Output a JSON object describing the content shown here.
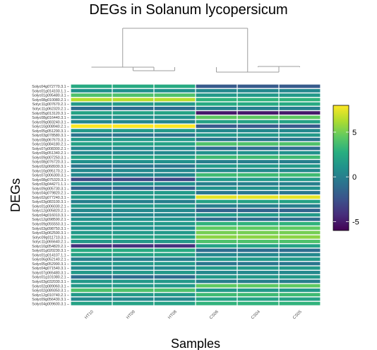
{
  "chart_data": {
    "type": "heatmap",
    "title": "DEGs in Solanum lycopersicum",
    "xlabel": "Samples",
    "ylabel": "DEGs",
    "columns": [
      "HT10",
      "HT09",
      "HT08",
      "CS06",
      "CS04",
      "CS05"
    ],
    "rows": [
      "Solyc04g072770.3.1",
      "Solyc01g014103.1.1",
      "Solyc01g095480.3.1",
      "Solyc08g010080.2.1",
      "Solyc11g007670.2.1",
      "Solyc11g062320.2.1",
      "Solyc05g013120.3.1",
      "Solyc08g016440.3.1",
      "Solyc09g083240.3.1",
      "Solyc10g008940.2.1",
      "Solyc05g051290.3.1",
      "Solyc03g078580.3.1",
      "Solyc08g067670.3.1",
      "Solyc10g084180.2.1",
      "Solyc07g008300.2.1",
      "Solyc09g051340.2.1",
      "Solyc09g007250.3.1",
      "Solyc08g076720.3.1",
      "Solyc02g068930.3.1",
      "Solyc10g095170.2.1",
      "Solyc07g006300.3.1",
      "Solyc08g075320.3.1",
      "Solyc03g044271.1.1",
      "Solyc09g005730.3.1",
      "Solyc04g079820.2.1",
      "Solyc02g077240.3.1",
      "Solyc03g083100.3.1",
      "Solyc01g006030.2.1",
      "Solyc12g005820.2.1",
      "Solyc04g016010.3.1",
      "Solyc12g098590.2.1",
      "Solyc09g055550.3.1",
      "Solyc03g098750.3.1",
      "Solyc03g062590.3.1",
      "Solyc09g011710.3.1",
      "Solyc11g065640.2.1",
      "Solyc10g054820.2.1",
      "Solyc01g020230.3.1",
      "Solyc01g014107.1.1",
      "Solyc06g052140.2.1",
      "Solyc05g052990.3.1",
      "Solyc04g071540.3.1",
      "Solyc07g065480.3.1",
      "Solyc01g101080.2.1",
      "Solyc03g032030.3.1",
      "Solyc02g089060.3.1",
      "Solyc02g089350.3.1",
      "Solyc12g010740.2.1",
      "Solyc09g056430.3.1",
      "Solyc04g009600.3.1"
    ],
    "values": [
      [
        2.5,
        2.5,
        2.5,
        -2.0,
        -2.0,
        -2.0
      ],
      [
        1.0,
        1.0,
        1.0,
        0.5,
        0.5,
        0.5
      ],
      [
        4.0,
        4.0,
        4.0,
        1.5,
        1.5,
        1.5
      ],
      [
        6.5,
        6.5,
        6.5,
        3.0,
        3.0,
        3.0
      ],
      [
        1.5,
        1.5,
        1.5,
        2.5,
        2.5,
        2.5
      ],
      [
        -1.0,
        -1.0,
        -1.0,
        0.0,
        0.0,
        0.0
      ],
      [
        2.0,
        2.0,
        2.0,
        -5.0,
        -5.0,
        -5.0
      ],
      [
        1.0,
        1.0,
        1.0,
        4.5,
        4.5,
        4.5
      ],
      [
        0.5,
        0.5,
        0.5,
        2.0,
        2.0,
        2.0
      ],
      [
        8.0,
        8.0,
        8.0,
        -2.0,
        -2.0,
        -2.0
      ],
      [
        1.5,
        1.5,
        1.5,
        0.5,
        0.5,
        0.5
      ],
      [
        -0.5,
        -0.5,
        -0.5,
        1.5,
        1.5,
        1.5
      ],
      [
        1.5,
        1.5,
        1.5,
        -0.5,
        -0.5,
        -0.5
      ],
      [
        2.0,
        2.0,
        2.0,
        4.0,
        4.0,
        4.0
      ],
      [
        0.5,
        0.5,
        0.5,
        -1.0,
        -1.0,
        -1.0
      ],
      [
        0.5,
        0.5,
        0.5,
        1.0,
        1.0,
        1.0
      ],
      [
        2.0,
        2.0,
        2.0,
        3.5,
        3.5,
        3.5
      ],
      [
        1.0,
        1.0,
        1.0,
        0.0,
        0.0,
        0.0
      ],
      [
        -0.5,
        -0.5,
        -0.5,
        1.5,
        1.5,
        1.5
      ],
      [
        0.5,
        0.5,
        0.5,
        0.5,
        0.5,
        0.5
      ],
      [
        0.5,
        0.5,
        0.5,
        3.5,
        3.5,
        3.5
      ],
      [
        -3.0,
        -3.0,
        -3.0,
        1.5,
        1.5,
        1.5
      ],
      [
        1.0,
        1.0,
        1.0,
        0.0,
        0.0,
        0.0
      ],
      [
        -1.5,
        -1.5,
        -1.5,
        1.0,
        1.0,
        1.0
      ],
      [
        1.5,
        1.5,
        1.5,
        -0.5,
        -0.5,
        -0.5
      ],
      [
        1.5,
        1.5,
        1.5,
        7.5,
        7.5,
        7.5
      ],
      [
        0.0,
        0.0,
        0.0,
        2.0,
        2.0,
        2.0
      ],
      [
        1.5,
        1.5,
        1.5,
        0.0,
        0.0,
        0.0
      ],
      [
        0.5,
        0.5,
        0.5,
        -1.5,
        -1.5,
        -1.5
      ],
      [
        0.5,
        0.5,
        0.5,
        1.5,
        1.5,
        1.5
      ],
      [
        1.0,
        1.0,
        1.0,
        -1.0,
        -1.0,
        -1.0
      ],
      [
        1.5,
        1.5,
        1.5,
        3.0,
        3.0,
        3.0
      ],
      [
        1.0,
        1.0,
        1.0,
        4.5,
        4.5,
        4.5
      ],
      [
        1.5,
        1.5,
        1.5,
        5.0,
        5.0,
        5.0
      ],
      [
        2.0,
        2.0,
        2.0,
        5.5,
        5.5,
        5.5
      ],
      [
        1.5,
        1.5,
        1.5,
        4.0,
        4.0,
        4.0
      ],
      [
        -4.0,
        -4.0,
        -4.0,
        2.0,
        2.0,
        2.0
      ],
      [
        2.5,
        2.5,
        2.5,
        -1.0,
        -1.0,
        -1.0
      ],
      [
        2.0,
        2.0,
        2.0,
        0.5,
        0.5,
        0.5
      ],
      [
        0.0,
        0.0,
        0.0,
        1.5,
        1.5,
        1.5
      ],
      [
        1.5,
        1.5,
        1.5,
        -0.5,
        -0.5,
        -0.5
      ],
      [
        0.5,
        0.5,
        0.5,
        1.5,
        1.5,
        1.5
      ],
      [
        1.5,
        1.5,
        1.5,
        0.5,
        0.5,
        0.5
      ],
      [
        -1.0,
        -1.0,
        -1.0,
        1.5,
        1.5,
        1.5
      ],
      [
        1.5,
        1.5,
        1.5,
        0.0,
        0.0,
        0.0
      ],
      [
        1.5,
        1.5,
        1.5,
        4.5,
        4.5,
        4.5
      ],
      [
        4.0,
        4.0,
        4.0,
        1.5,
        1.5,
        1.5
      ],
      [
        1.5,
        1.5,
        1.5,
        3.5,
        3.5,
        3.5
      ],
      [
        0.5,
        0.5,
        0.5,
        2.0,
        2.0,
        2.0
      ],
      [
        2.0,
        2.0,
        2.0,
        3.0,
        3.0,
        3.0
      ]
    ],
    "color_scale": {
      "palette": "viridis",
      "range": [
        -6,
        8
      ],
      "ticks": [
        -5,
        0,
        5
      ]
    },
    "legend": "right",
    "dendrogram": {
      "columns": [
        [
          "HT09",
          "HT08"
        ],
        [
          "HT10",
          [
            "HT09",
            "HT08"
          ]
        ],
        [
          "CS04",
          "CS05"
        ],
        [
          "CS06",
          [
            "CS04",
            "CS05"
          ]
        ],
        [
          "HT",
          "CS"
        ]
      ]
    }
  }
}
